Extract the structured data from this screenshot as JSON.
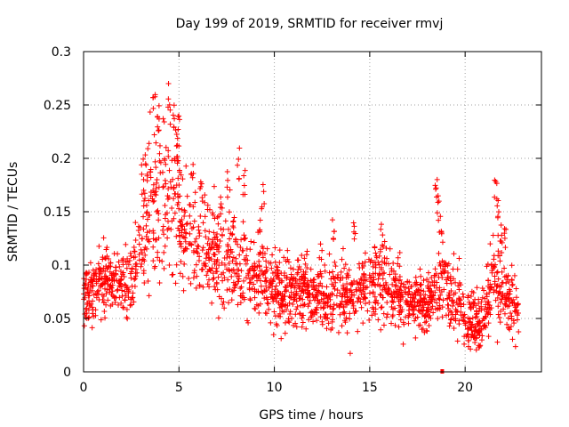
{
  "chart_data": {
    "type": "scatter",
    "title": "Day 199 of 2019, SRMTID for receiver rmvj",
    "xlabel": "GPS time / hours",
    "ylabel": "SRMTID / TECUs",
    "xlim": [
      0,
      24
    ],
    "ylim": [
      0,
      0.3
    ],
    "x_ticks": [
      0,
      5,
      10,
      15,
      20
    ],
    "x_tick_labels": [
      "0",
      "5",
      "10",
      "15",
      "20"
    ],
    "y_ticks": [
      0,
      0.05,
      0.1,
      0.15,
      0.2,
      0.25,
      0.3
    ],
    "y_tick_labels": [
      "0",
      "0.05",
      "0.1",
      "0.15",
      "0.2",
      "0.25",
      "0.3"
    ],
    "grid": true,
    "marker": "plus",
    "color": "#ff0000",
    "series": [
      {
        "name": "rmvj",
        "trend": [
          [
            0.0,
            0.07,
            0.02
          ],
          [
            0.5,
            0.08,
            0.02
          ],
          [
            1.0,
            0.085,
            0.02
          ],
          [
            1.5,
            0.085,
            0.02
          ],
          [
            2.0,
            0.08,
            0.02
          ],
          [
            2.5,
            0.085,
            0.02
          ],
          [
            3.0,
            0.12,
            0.035
          ],
          [
            3.5,
            0.15,
            0.05
          ],
          [
            4.0,
            0.16,
            0.05
          ],
          [
            4.5,
            0.17,
            0.05
          ],
          [
            5.0,
            0.15,
            0.05
          ],
          [
            5.5,
            0.12,
            0.035
          ],
          [
            6.0,
            0.12,
            0.035
          ],
          [
            6.5,
            0.11,
            0.03
          ],
          [
            7.0,
            0.11,
            0.03
          ],
          [
            7.5,
            0.1,
            0.03
          ],
          [
            8.0,
            0.1,
            0.03
          ],
          [
            8.5,
            0.1,
            0.03
          ],
          [
            9.0,
            0.09,
            0.03
          ],
          [
            9.5,
            0.085,
            0.025
          ],
          [
            10.0,
            0.075,
            0.025
          ],
          [
            11.0,
            0.075,
            0.025
          ],
          [
            12.0,
            0.075,
            0.025
          ],
          [
            13.0,
            0.07,
            0.025
          ],
          [
            14.0,
            0.07,
            0.025
          ],
          [
            15.0,
            0.085,
            0.025
          ],
          [
            15.5,
            0.09,
            0.025
          ],
          [
            16.0,
            0.08,
            0.025
          ],
          [
            17.0,
            0.065,
            0.02
          ],
          [
            18.0,
            0.065,
            0.02
          ],
          [
            18.8,
            0.085,
            0.025
          ],
          [
            19.5,
            0.075,
            0.025
          ],
          [
            20.0,
            0.05,
            0.02
          ],
          [
            20.5,
            0.045,
            0.02
          ],
          [
            21.0,
            0.05,
            0.02
          ],
          [
            21.5,
            0.09,
            0.03
          ],
          [
            22.0,
            0.08,
            0.025
          ],
          [
            22.5,
            0.06,
            0.02
          ],
          [
            22.8,
            0.055,
            0.02
          ]
        ],
        "sample_count": 2000,
        "peaks": [
          {
            "x": 3.7,
            "y": 0.26
          },
          {
            "x": 3.9,
            "y": 0.25
          },
          {
            "x": 4.5,
            "y": 0.27
          },
          {
            "x": 4.7,
            "y": 0.25
          },
          {
            "x": 4.9,
            "y": 0.23
          },
          {
            "x": 3.1,
            "y": 0.2
          },
          {
            "x": 3.3,
            "y": 0.21
          },
          {
            "x": 5.0,
            "y": 0.24
          },
          {
            "x": 5.7,
            "y": 0.2
          },
          {
            "x": 6.2,
            "y": 0.18
          },
          {
            "x": 7.2,
            "y": 0.17
          },
          {
            "x": 7.6,
            "y": 0.19
          },
          {
            "x": 7.9,
            "y": 0.15
          },
          {
            "x": 8.1,
            "y": 0.21
          },
          {
            "x": 8.4,
            "y": 0.19
          },
          {
            "x": 9.4,
            "y": 0.18
          },
          {
            "x": 9.2,
            "y": 0.15
          },
          {
            "x": 13.1,
            "y": 0.15
          },
          {
            "x": 14.2,
            "y": 0.15
          },
          {
            "x": 15.6,
            "y": 0.14
          },
          {
            "x": 18.5,
            "y": 0.19
          },
          {
            "x": 18.6,
            "y": 0.17
          },
          {
            "x": 18.7,
            "y": 0.15
          },
          {
            "x": 21.6,
            "y": 0.18
          },
          {
            "x": 21.7,
            "y": 0.17
          },
          {
            "x": 21.9,
            "y": 0.15
          },
          {
            "x": 22.1,
            "y": 0.14
          }
        ],
        "zero_markers": [
          {
            "x": 18.8,
            "y": 0.0
          }
        ]
      }
    ]
  }
}
